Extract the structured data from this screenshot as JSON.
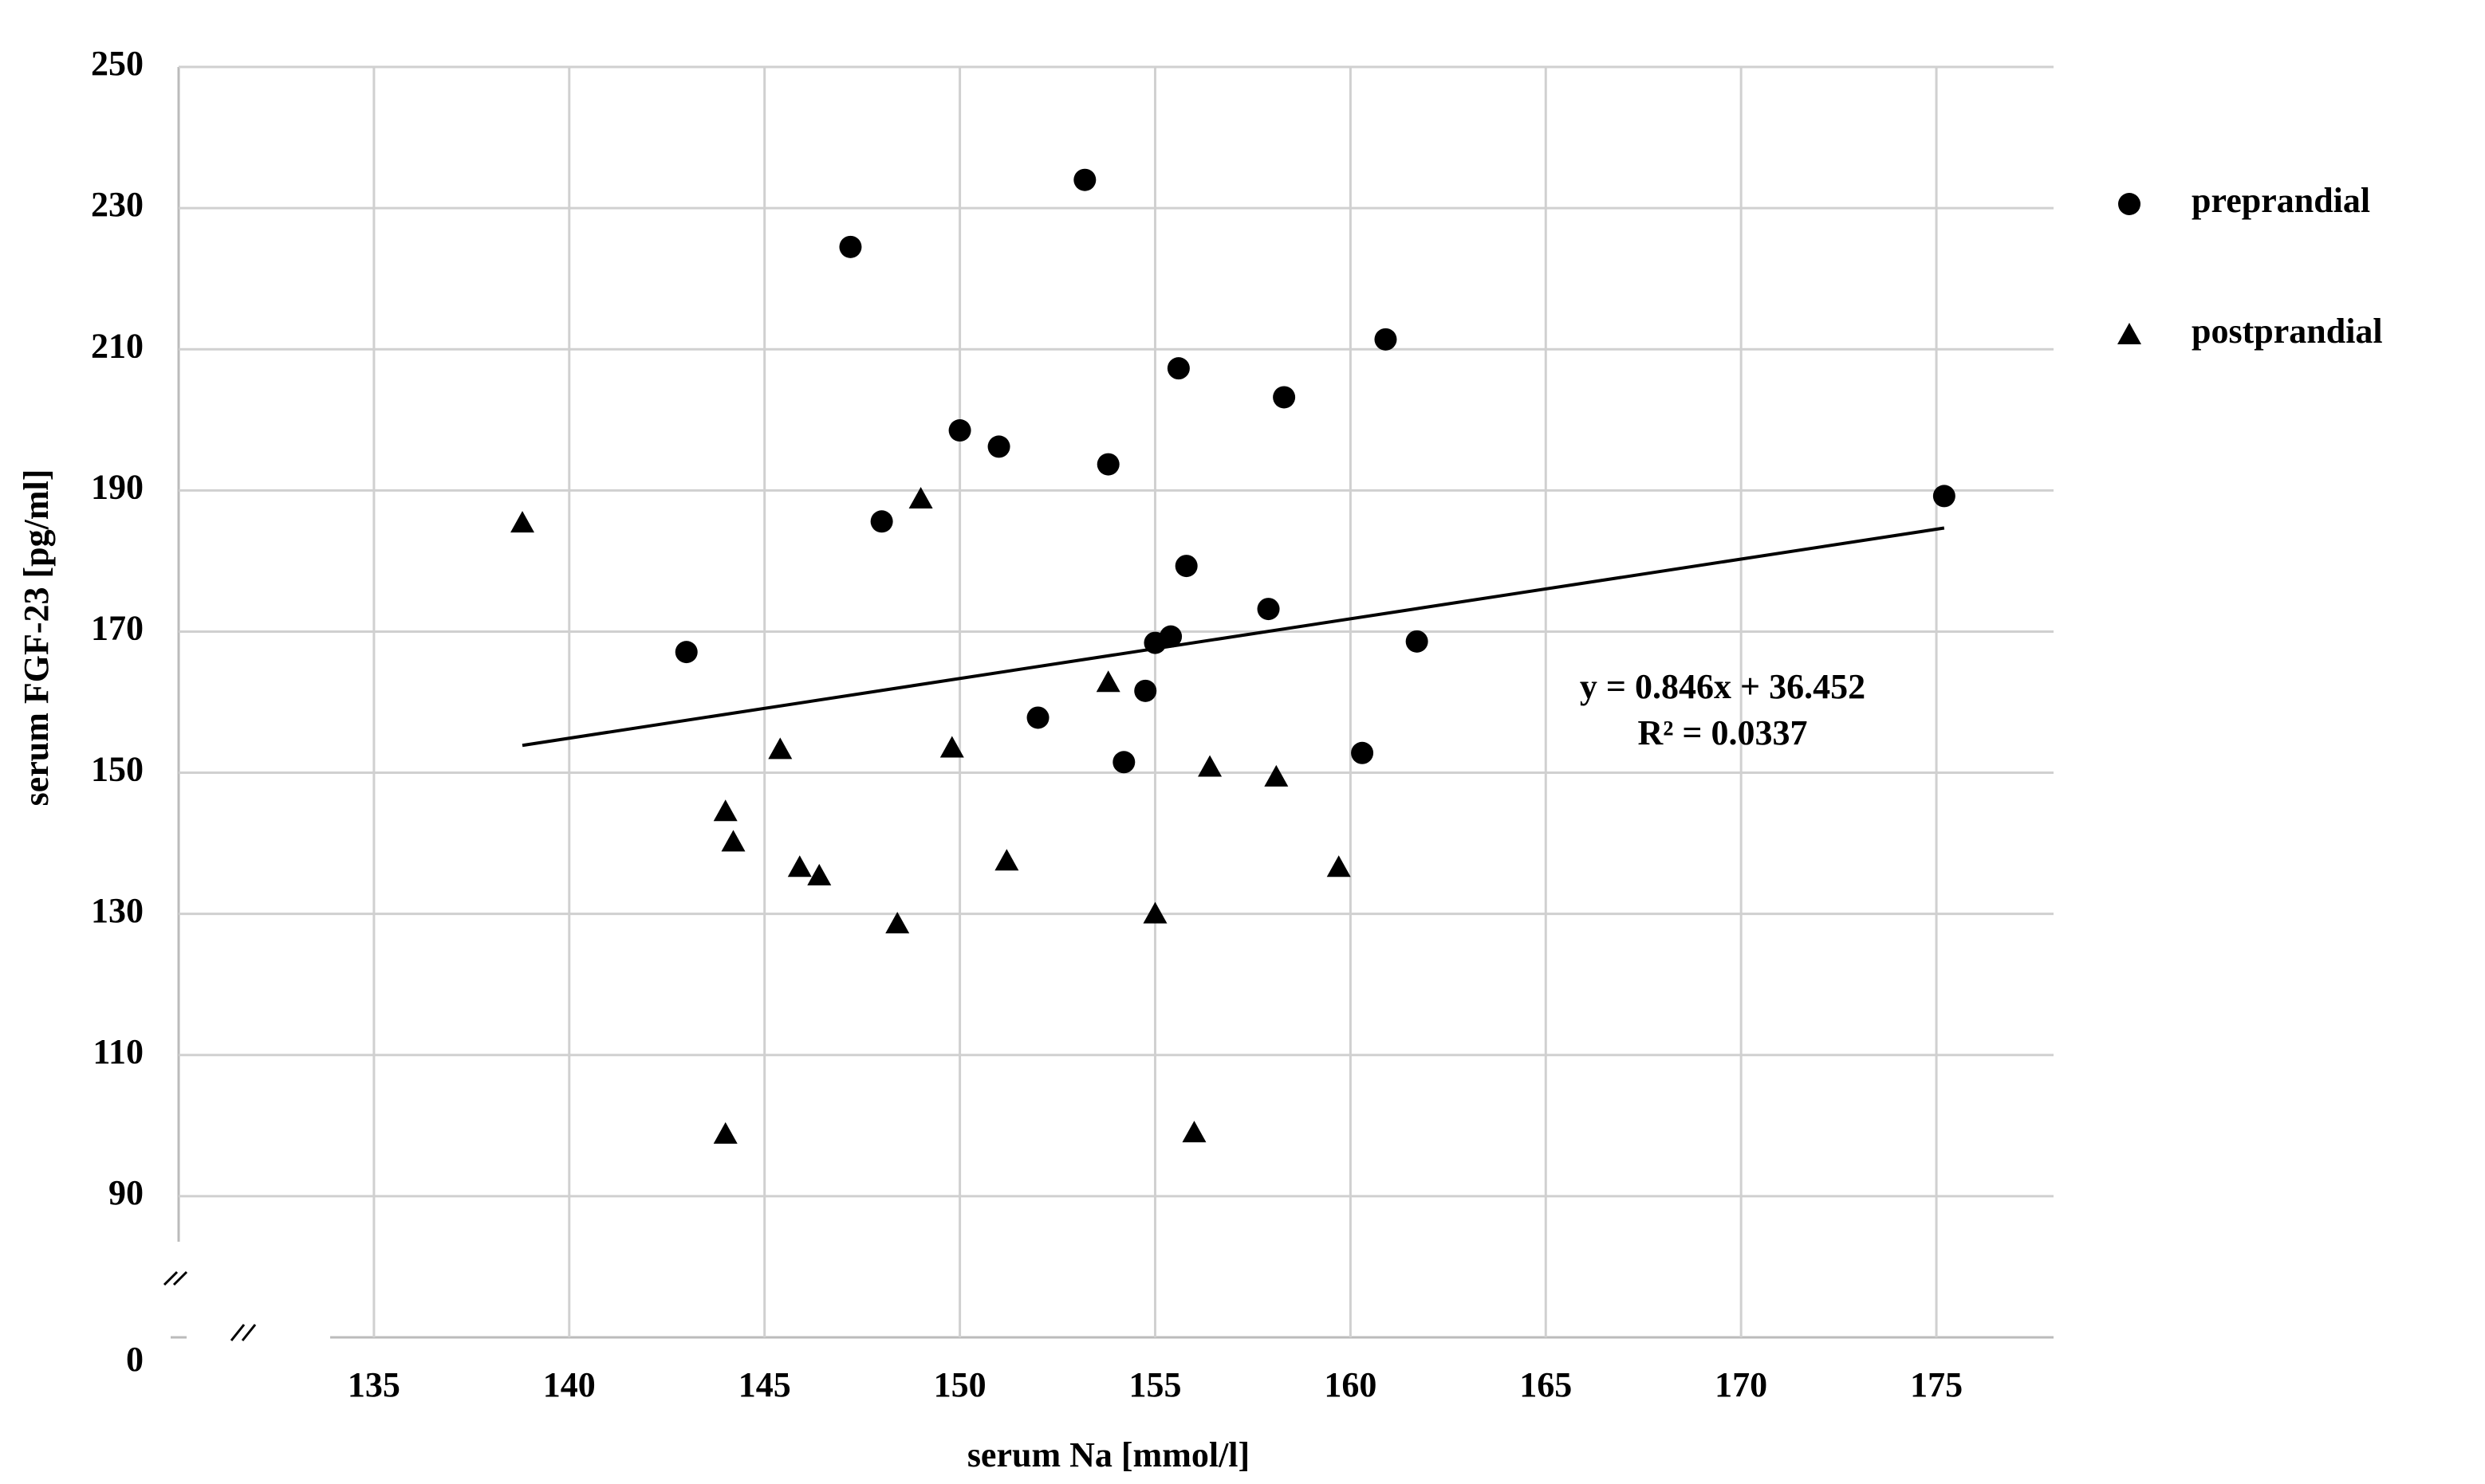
{
  "chart_data": {
    "type": "scatter",
    "x_label": "serum Na [mmol/l]",
    "y_label": "serum FGF-23 [pg/ml]",
    "xlim": [
      130,
      178
    ],
    "xticks": [
      135,
      140,
      145,
      150,
      155,
      160,
      165,
      170,
      175
    ],
    "ylim": [
      70,
      250
    ],
    "yticks": [
      0,
      90,
      110,
      130,
      150,
      170,
      190,
      210,
      230,
      250
    ],
    "axis_break": true,
    "grid": true,
    "legend": "right",
    "series": [
      {
        "name": "preprandial",
        "color": "#000000",
        "marker": "circle",
        "x": [
          143.0,
          147.2,
          148.0,
          150.0,
          151.0,
          152.0,
          153.2,
          153.8,
          154.2,
          154.75,
          155.0,
          155.4,
          155.6,
          155.8,
          157.9,
          158.3,
          160.3,
          160.9,
          161.7,
          175.2
        ],
        "values": [
          167.1,
          224.5,
          185.6,
          198.5,
          196.2,
          157.8,
          234.0,
          193.7,
          151.5,
          161.6,
          168.4,
          169.3,
          207.3,
          179.3,
          173.2,
          203.2,
          152.8,
          211.4,
          168.6,
          189.2
        ]
      },
      {
        "name": "postprandial",
        "color": "#000000",
        "marker": "triangle",
        "x": [
          138.8,
          144.0,
          144.0,
          144.2,
          145.4,
          145.9,
          146.4,
          148.4,
          149.0,
          149.8,
          151.2,
          153.8,
          155.0,
          156.0,
          156.4,
          158.1,
          159.7
        ],
        "values": [
          185.4,
          144.5,
          98.8,
          140.2,
          153.3,
          136.6,
          135.4,
          128.6,
          188.8,
          153.5,
          137.5,
          162.8,
          130.0,
          99.0,
          150.8,
          149.4,
          136.6
        ]
      }
    ],
    "trendline": {
      "slope": 0.846,
      "intercept": 36.452,
      "x_range": [
        138.8,
        175.2
      ],
      "equation": "y = 0.846x + 36.452",
      "r_squared": "R² = 0.0337"
    }
  }
}
